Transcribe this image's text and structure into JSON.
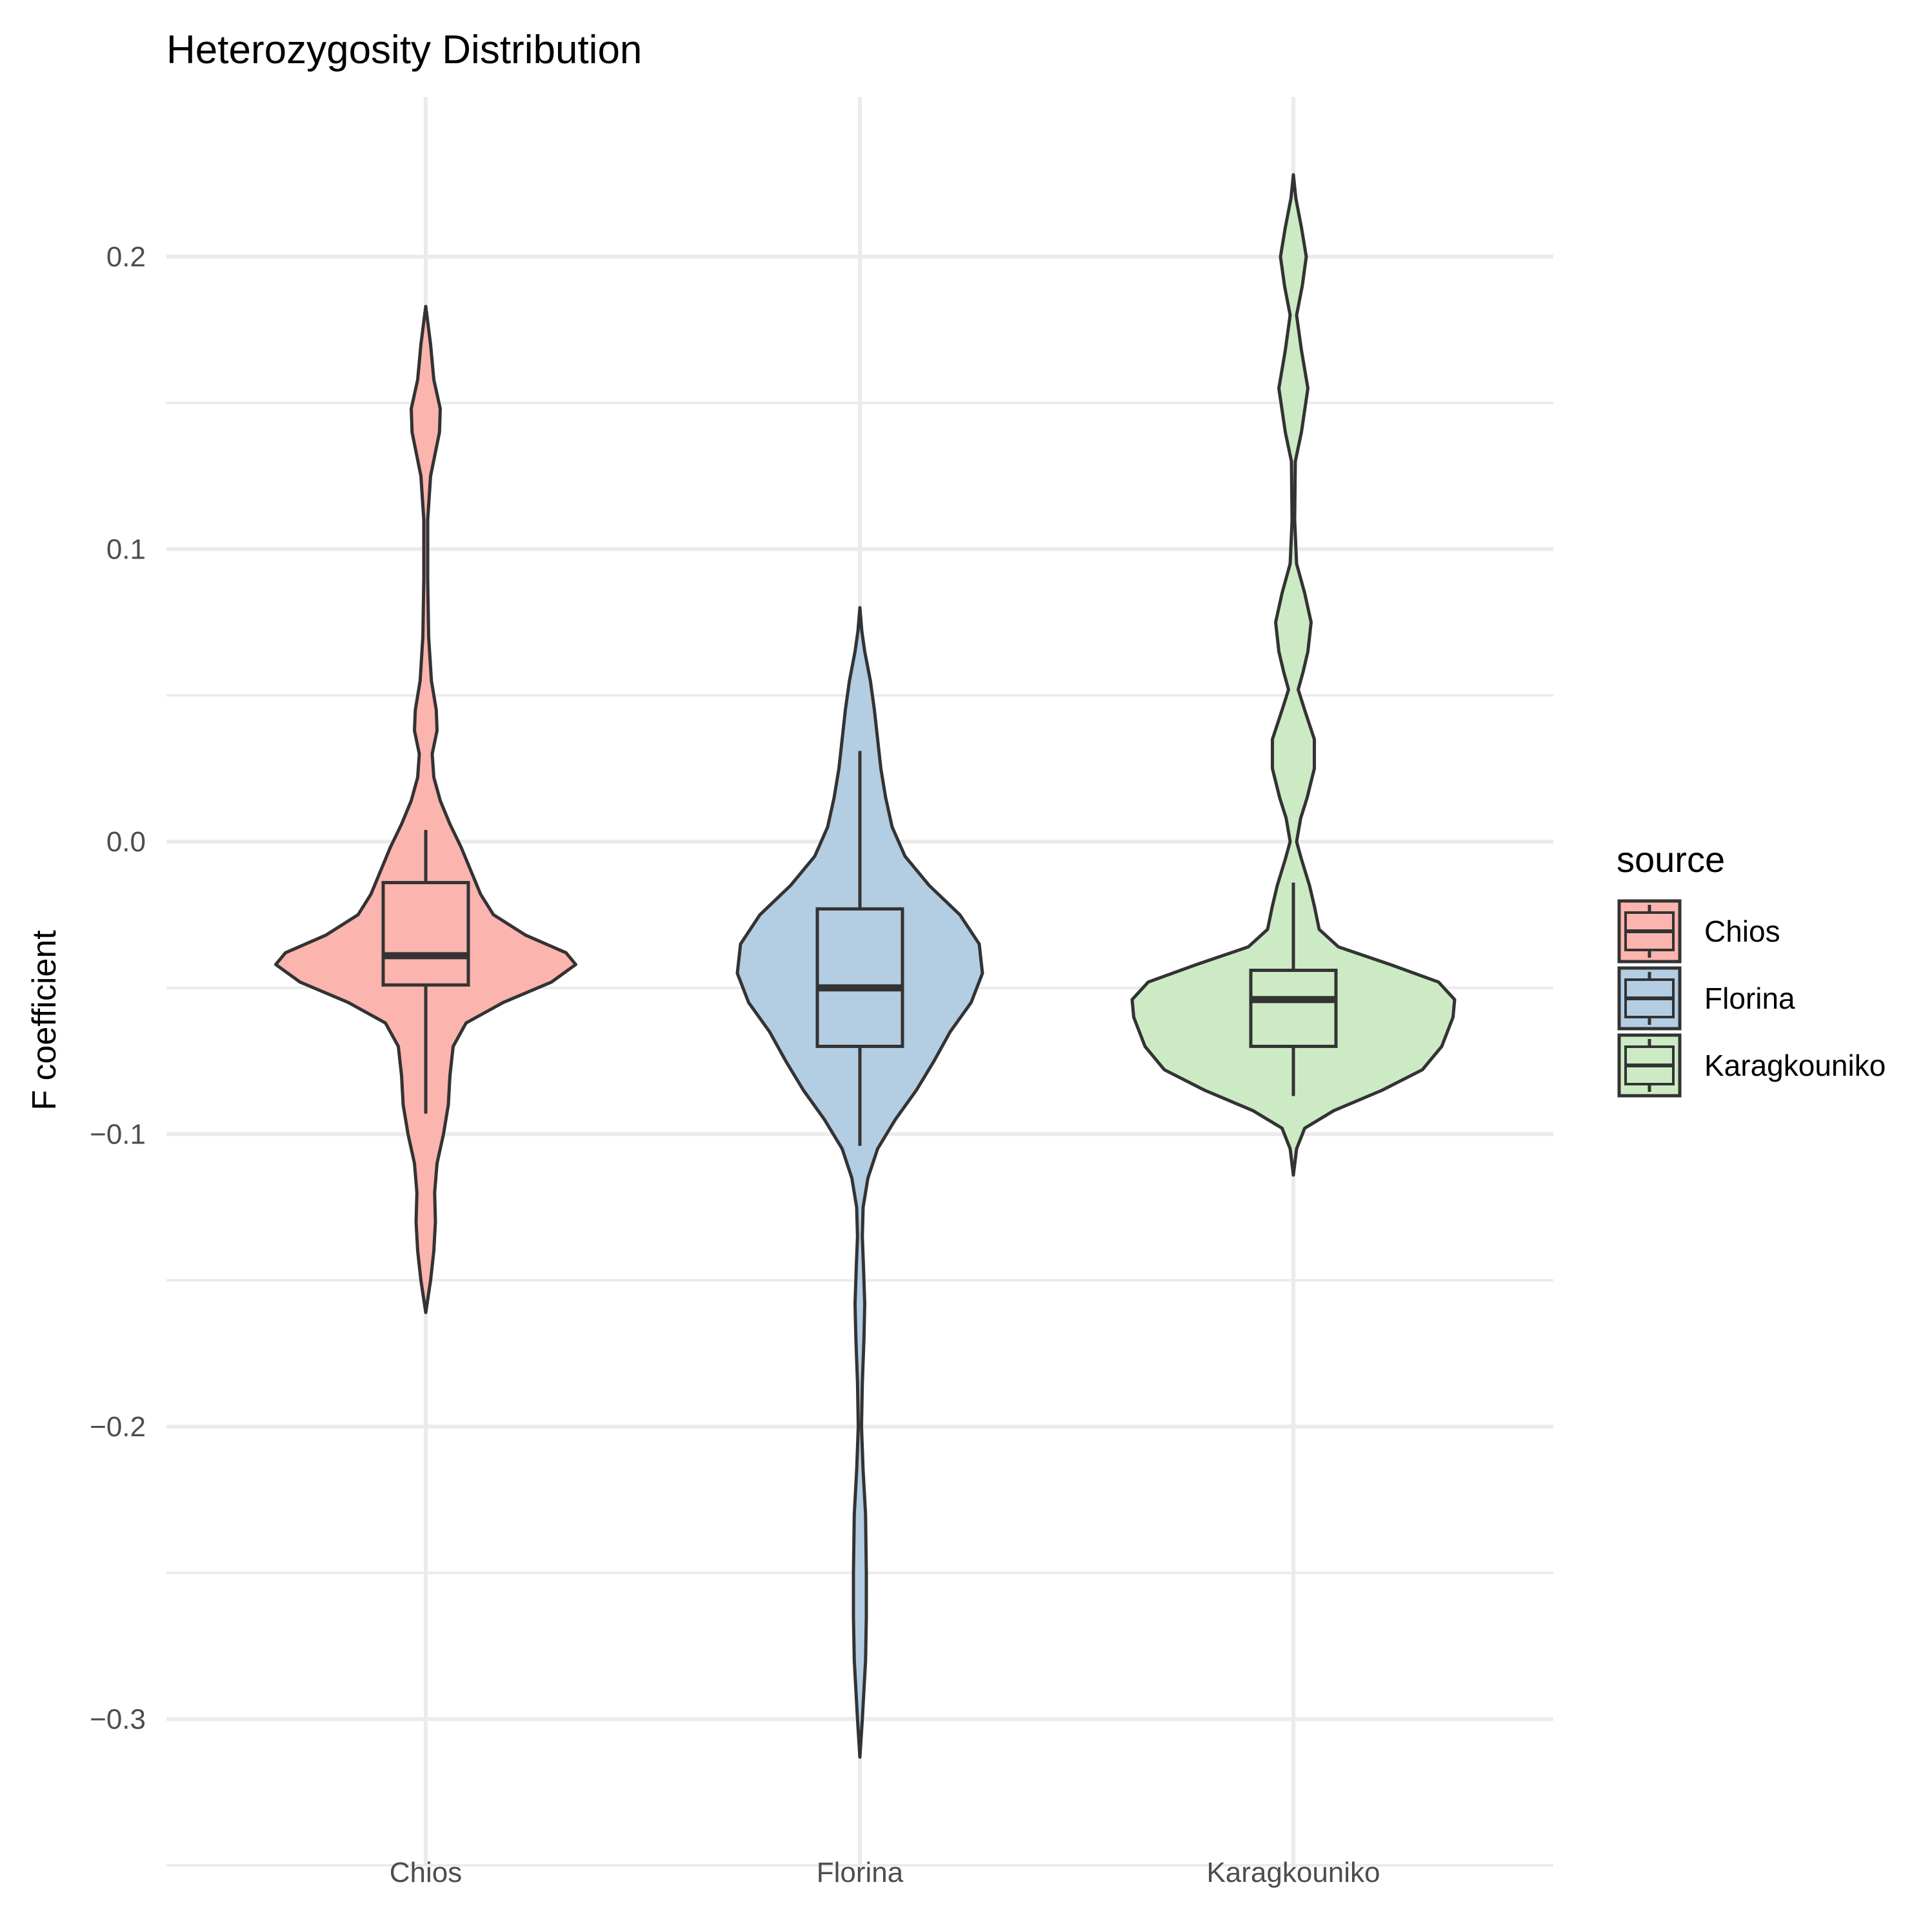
{
  "chart_data": {
    "type": "violin",
    "title": "Heterozygosity Distribution",
    "xlabel": "",
    "ylabel": "F coefficient",
    "ylim": [
      -0.335,
      0.25
    ],
    "yticks": [
      -0.3,
      -0.2,
      -0.1,
      0.0,
      0.1,
      0.2
    ],
    "ytick_labels": [
      "−0.3",
      "−0.2",
      "−0.1",
      "0.0",
      "0.1",
      "0.2"
    ],
    "categories": [
      "Chios",
      "Florina",
      "Karagkouniko"
    ],
    "grid": true,
    "legend": {
      "title": "source",
      "position": "right",
      "items": [
        "Chios",
        "Florina",
        "Karagkouniko"
      ]
    },
    "series": [
      {
        "name": "Chios",
        "color": "#FBB4AE",
        "box": {
          "whisker_low": -0.093,
          "q1": -0.049,
          "median": -0.039,
          "q3": -0.014,
          "whisker_high": 0.004
        },
        "density": [
          [
            -0.161,
            0.0
          ],
          [
            -0.15,
            0.03
          ],
          [
            -0.14,
            0.05
          ],
          [
            -0.13,
            0.06
          ],
          [
            -0.12,
            0.055
          ],
          [
            -0.11,
            0.07
          ],
          [
            -0.1,
            0.11
          ],
          [
            -0.09,
            0.14
          ],
          [
            -0.08,
            0.15
          ],
          [
            -0.07,
            0.17
          ],
          [
            -0.062,
            0.25
          ],
          [
            -0.055,
            0.48
          ],
          [
            -0.048,
            0.78
          ],
          [
            -0.042,
            0.93
          ],
          [
            -0.038,
            0.87
          ],
          [
            -0.032,
            0.62
          ],
          [
            -0.025,
            0.42
          ],
          [
            -0.018,
            0.34
          ],
          [
            -0.01,
            0.28
          ],
          [
            -0.002,
            0.22
          ],
          [
            0.006,
            0.15
          ],
          [
            0.014,
            0.09
          ],
          [
            0.022,
            0.05
          ],
          [
            0.03,
            0.04
          ],
          [
            0.038,
            0.07
          ],
          [
            0.045,
            0.065
          ],
          [
            0.055,
            0.035
          ],
          [
            0.07,
            0.018
          ],
          [
            0.09,
            0.012
          ],
          [
            0.11,
            0.012
          ],
          [
            0.125,
            0.03
          ],
          [
            0.14,
            0.085
          ],
          [
            0.148,
            0.09
          ],
          [
            0.158,
            0.05
          ],
          [
            0.17,
            0.03
          ],
          [
            0.183,
            0.0
          ]
        ]
      },
      {
        "name": "Florina",
        "color": "#B3CDE3",
        "box": {
          "whisker_low": -0.104,
          "q1": -0.07,
          "median": -0.05,
          "q3": -0.023,
          "whisker_high": 0.031
        },
        "density": [
          [
            -0.313,
            0.0
          ],
          [
            -0.3,
            0.015
          ],
          [
            -0.29,
            0.025
          ],
          [
            -0.28,
            0.035
          ],
          [
            -0.265,
            0.04
          ],
          [
            -0.25,
            0.04
          ],
          [
            -0.23,
            0.035
          ],
          [
            -0.215,
            0.02
          ],
          [
            -0.2,
            0.01
          ],
          [
            -0.185,
            0.015
          ],
          [
            -0.17,
            0.025
          ],
          [
            -0.158,
            0.03
          ],
          [
            -0.145,
            0.022
          ],
          [
            -0.135,
            0.015
          ],
          [
            -0.125,
            0.02
          ],
          [
            -0.115,
            0.05
          ],
          [
            -0.105,
            0.11
          ],
          [
            -0.095,
            0.22
          ],
          [
            -0.085,
            0.35
          ],
          [
            -0.075,
            0.46
          ],
          [
            -0.065,
            0.56
          ],
          [
            -0.055,
            0.69
          ],
          [
            -0.045,
            0.76
          ],
          [
            -0.035,
            0.74
          ],
          [
            -0.025,
            0.62
          ],
          [
            -0.015,
            0.43
          ],
          [
            -0.005,
            0.28
          ],
          [
            0.005,
            0.2
          ],
          [
            0.015,
            0.16
          ],
          [
            0.025,
            0.13
          ],
          [
            0.035,
            0.11
          ],
          [
            0.045,
            0.09
          ],
          [
            0.055,
            0.065
          ],
          [
            0.065,
            0.03
          ],
          [
            0.072,
            0.012
          ],
          [
            0.08,
            0.0
          ]
        ]
      },
      {
        "name": "Karagkouniko",
        "color": "#CCEBC5",
        "box": {
          "whisker_low": -0.087,
          "q1": -0.07,
          "median": -0.054,
          "q3": -0.044,
          "whisker_high": -0.014
        },
        "density": [
          [
            -0.114,
            0.0
          ],
          [
            -0.105,
            0.02
          ],
          [
            -0.098,
            0.07
          ],
          [
            -0.092,
            0.25
          ],
          [
            -0.085,
            0.55
          ],
          [
            -0.078,
            0.8
          ],
          [
            -0.07,
            0.92
          ],
          [
            -0.06,
            0.99
          ],
          [
            -0.054,
            1.0
          ],
          [
            -0.048,
            0.9
          ],
          [
            -0.042,
            0.6
          ],
          [
            -0.036,
            0.28
          ],
          [
            -0.03,
            0.16
          ],
          [
            -0.022,
            0.13
          ],
          [
            -0.015,
            0.1
          ],
          [
            -0.006,
            0.05
          ],
          [
            0.0,
            0.02
          ],
          [
            0.008,
            0.045
          ],
          [
            0.015,
            0.085
          ],
          [
            0.025,
            0.13
          ],
          [
            0.035,
            0.13
          ],
          [
            0.045,
            0.07
          ],
          [
            0.052,
            0.03
          ],
          [
            0.058,
            0.06
          ],
          [
            0.065,
            0.09
          ],
          [
            0.075,
            0.11
          ],
          [
            0.085,
            0.07
          ],
          [
            0.095,
            0.02
          ],
          [
            0.11,
            0.008
          ],
          [
            0.13,
            0.012
          ],
          [
            0.14,
            0.05
          ],
          [
            0.155,
            0.09
          ],
          [
            0.168,
            0.05
          ],
          [
            0.18,
            0.02
          ],
          [
            0.19,
            0.055
          ],
          [
            0.2,
            0.08
          ],
          [
            0.21,
            0.05
          ],
          [
            0.22,
            0.015
          ],
          [
            0.228,
            0.0
          ]
        ]
      }
    ]
  }
}
